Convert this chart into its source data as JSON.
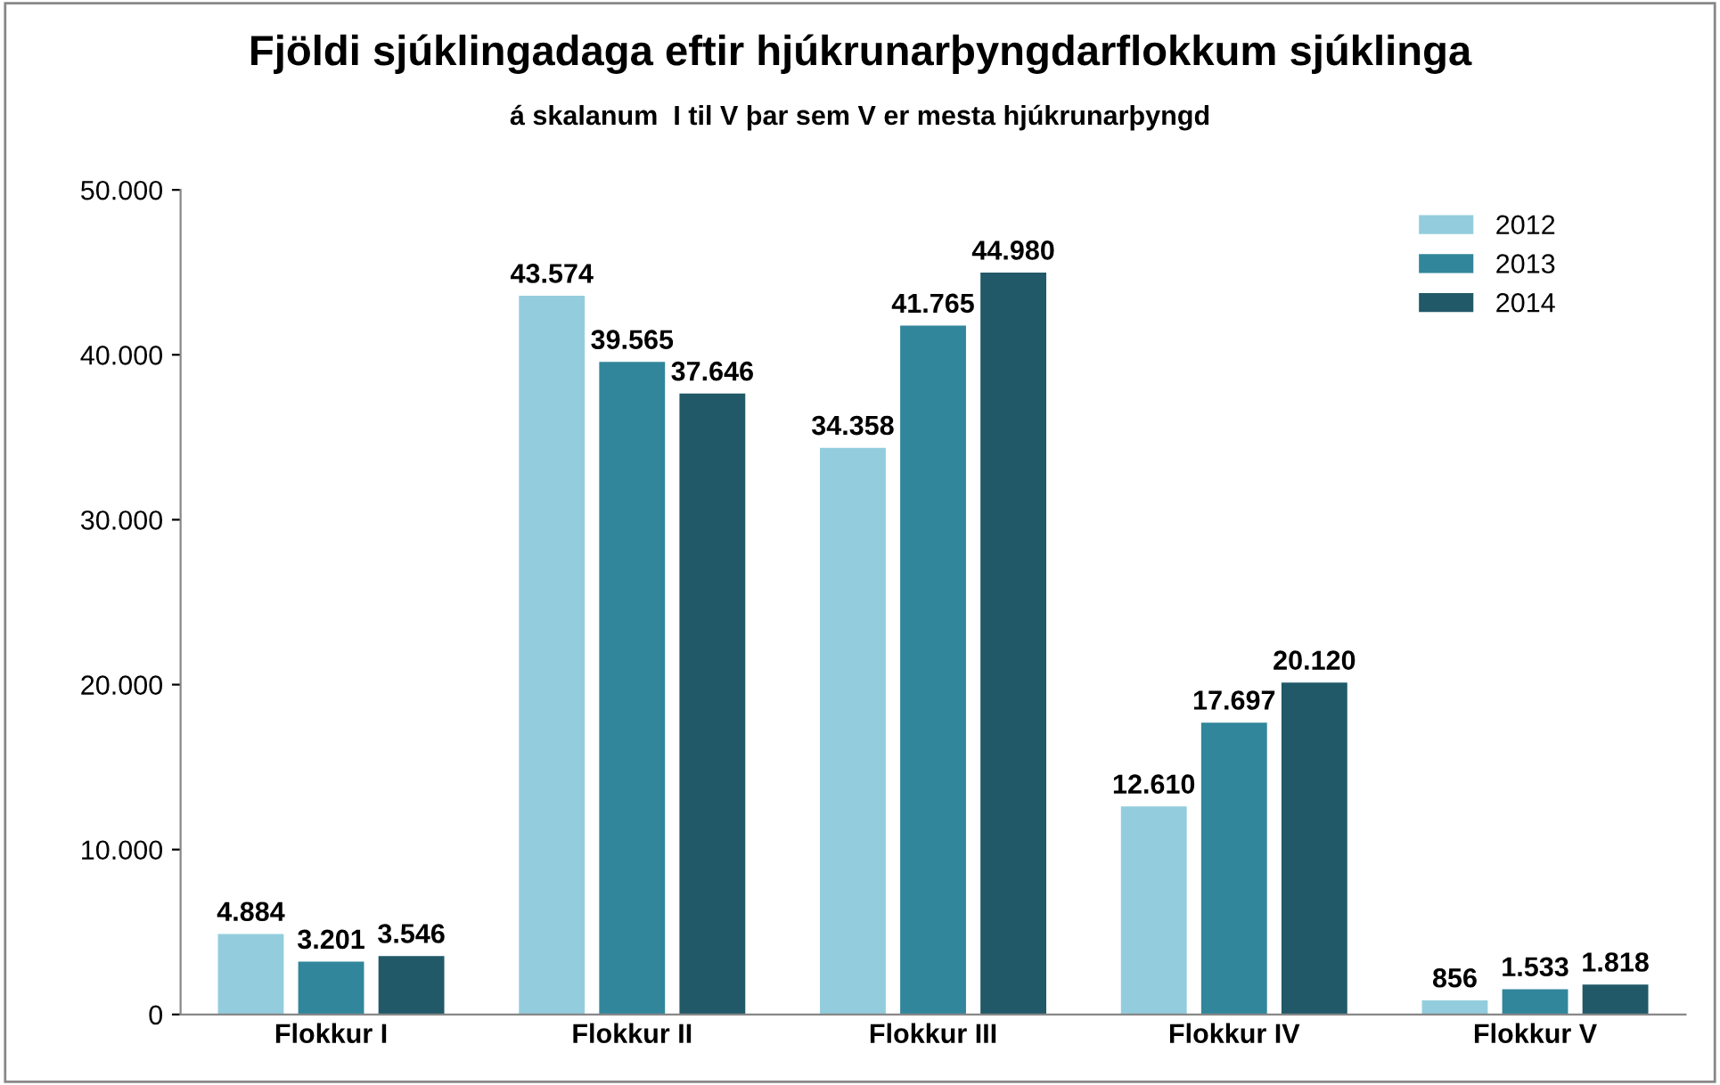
{
  "chart_data": {
    "type": "bar",
    "title": "Fjöldi sjúklingadaga eftir hjúkrunarþyngdarflokkum sjúklinga",
    "subtitle": "á skalanum  I til V þar sem V er mesta hjúkrunarþyngd",
    "categories": [
      "Flokkur I",
      "Flokkur II",
      "Flokkur III",
      "Flokkur IV",
      "Flokkur V"
    ],
    "series": [
      {
        "name": "2012",
        "color": "#93cddd",
        "values": [
          4884,
          43574,
          34358,
          12610,
          856
        ],
        "value_labels": [
          "4.884",
          "43.574",
          "34.358",
          "12.610",
          "856"
        ]
      },
      {
        "name": "2013",
        "color": "#31869b",
        "values": [
          3201,
          39565,
          41765,
          17697,
          1533
        ],
        "value_labels": [
          "3.201",
          "39.565",
          "41.765",
          "17.697",
          "1.533"
        ]
      },
      {
        "name": "2014",
        "color": "#215968",
        "values": [
          3546,
          37646,
          44980,
          20120,
          1818
        ],
        "value_labels": [
          "3.546",
          "37.646",
          "44.980",
          "20.120",
          "1.818"
        ]
      }
    ],
    "ylim": [
      0,
      50000
    ],
    "yticks": [
      {
        "value": 0,
        "label": "0"
      },
      {
        "value": 10000,
        "label": "10.000"
      },
      {
        "value": 20000,
        "label": "20.000"
      },
      {
        "value": 30000,
        "label": "30.000"
      },
      {
        "value": 40000,
        "label": "40.000"
      },
      {
        "value": 50000,
        "label": "50.000"
      }
    ],
    "grid": false,
    "legend": "top right"
  }
}
